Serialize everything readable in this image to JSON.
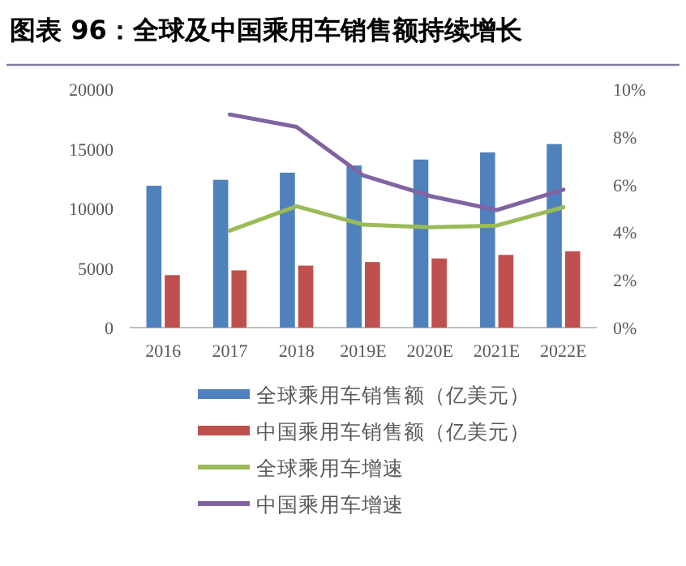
{
  "chart_data": {
    "type": "bar",
    "title": "图表 96：全球及中国乘用车销售额持续增长",
    "categories": [
      "2016",
      "2017",
      "2018",
      "2019E",
      "2020E",
      "2021E",
      "2022E"
    ],
    "series": [
      {
        "name": "全球乘用车销售额（亿美元）",
        "color": "#4f81bd",
        "values": [
          11900,
          12400,
          13000,
          13600,
          14100,
          14700,
          15400
        ]
      },
      {
        "name": "中国乘用车销售额（亿美元）",
        "color": "#c0504d",
        "values": [
          4400,
          4800,
          5200,
          5500,
          5800,
          6100,
          6400
        ]
      },
      {
        "name": "全球乘用车增速",
        "type": "line",
        "axis": "y2",
        "color": "#9bbb59",
        "values": [
          null,
          4.07,
          5.09,
          4.32,
          4.21,
          4.28,
          5.05
        ]
      },
      {
        "name": "中国乘用车增速",
        "type": "line",
        "axis": "y2",
        "color": "#8064a2",
        "values": [
          null,
          8.94,
          8.42,
          6.38,
          5.52,
          4.93,
          5.79
        ]
      }
    ],
    "ylim": [
      0,
      20000
    ],
    "yticks": [
      0,
      5000,
      10000,
      15000,
      20000
    ],
    "y2lim": [
      0,
      10
    ],
    "y2ticks": [
      {
        "value": 0,
        "label": "0%"
      },
      {
        "value": 2,
        "label": "2%"
      },
      {
        "value": 4,
        "label": "4%"
      },
      {
        "value": 6,
        "label": "6%"
      },
      {
        "value": 8,
        "label": "8%"
      },
      {
        "value": 10,
        "label": "10%"
      }
    ],
    "grid": false,
    "legend": "bottom",
    "marker": "none"
  }
}
